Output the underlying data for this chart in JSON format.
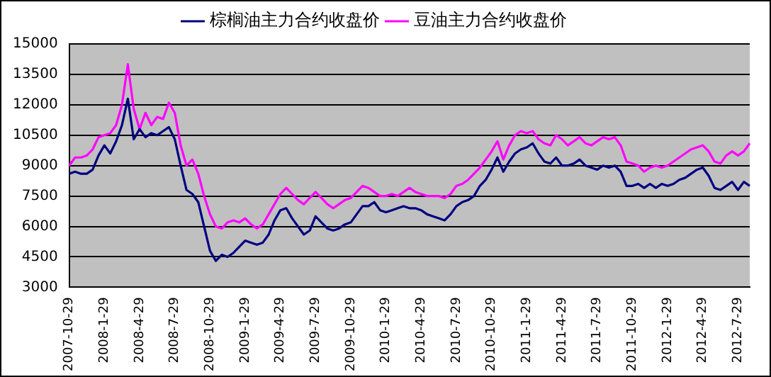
{
  "chart_data": {
    "type": "line",
    "categories": [
      "2007-10-29",
      null,
      null,
      null,
      null,
      null,
      "2008-1-29",
      null,
      null,
      null,
      null,
      null,
      "2008-4-29",
      null,
      null,
      null,
      null,
      null,
      "2008-7-29",
      null,
      null,
      null,
      null,
      null,
      "2008-10-29",
      null,
      null,
      null,
      null,
      null,
      "2009-1-29",
      null,
      null,
      null,
      null,
      null,
      "2009-4-29",
      null,
      null,
      null,
      null,
      null,
      "2009-7-29",
      null,
      null,
      null,
      null,
      null,
      "2009-10-29",
      null,
      null,
      null,
      null,
      null,
      "2010-1-29",
      null,
      null,
      null,
      null,
      null,
      "2010-4-29",
      null,
      null,
      null,
      null,
      null,
      "2010-7-29",
      null,
      null,
      null,
      null,
      null,
      "2010-10-29",
      null,
      null,
      null,
      null,
      null,
      "2011-1-29",
      null,
      null,
      null,
      null,
      null,
      "2011-4-29",
      null,
      null,
      null,
      null,
      null,
      "2011-7-29",
      null,
      null,
      null,
      null,
      null,
      "2011-10-29",
      null,
      null,
      null,
      null,
      null,
      "2012-1-29",
      null,
      null,
      null,
      null,
      null,
      "2012-4-29",
      null,
      null,
      null,
      null,
      null,
      "2012-7-29",
      null,
      null
    ],
    "series": [
      {
        "name": "棕榈油主力合约收盘价",
        "color": "#000080",
        "values": [
          8600,
          8700,
          8600,
          8600,
          8800,
          9500,
          10000,
          9600,
          10200,
          11000,
          12300,
          10300,
          10800,
          10400,
          10600,
          10500,
          10700,
          10900,
          10300,
          9000,
          7800,
          7600,
          7200,
          6000,
          4800,
          4300,
          4600,
          4500,
          4700,
          5000,
          5300,
          5200,
          5100,
          5200,
          5600,
          6300,
          6800,
          6900,
          6400,
          6000,
          5600,
          5800,
          6500,
          6200,
          5900,
          5800,
          5900,
          6100,
          6200,
          6600,
          7000,
          7000,
          7200,
          6800,
          6700,
          6800,
          6900,
          7000,
          6900,
          6900,
          6800,
          6600,
          6500,
          6400,
          6300,
          6600,
          7000,
          7200,
          7300,
          7500,
          8000,
          8300,
          8800,
          9400,
          8700,
          9200,
          9600,
          9800,
          9900,
          10100,
          9600,
          9200,
          9100,
          9400,
          9000,
          9000,
          9100,
          9300,
          9000,
          8900,
          8800,
          9000,
          8900,
          9000,
          8700,
          8000,
          8000,
          8100,
          7900,
          8100,
          7900,
          8100,
          8000,
          8100,
          8300,
          8400,
          8600,
          8800,
          8900,
          8500,
          7900,
          7800,
          8000,
          8200,
          7800,
          8200,
          8000
        ]
      },
      {
        "name": "豆油主力合约收盘价",
        "color": "#ff00ff",
        "values": [
          9000,
          9400,
          9400,
          9500,
          9800,
          10400,
          10500,
          10600,
          11000,
          12000,
          14000,
          11800,
          10800,
          11600,
          11000,
          11400,
          11300,
          12100,
          11600,
          10000,
          9000,
          9300,
          8600,
          7500,
          6600,
          6000,
          5900,
          6200,
          6300,
          6200,
          6400,
          6100,
          5900,
          6100,
          6600,
          7100,
          7600,
          7900,
          7600,
          7300,
          7100,
          7400,
          7700,
          7400,
          7100,
          6900,
          7100,
          7300,
          7400,
          7700,
          8000,
          7900,
          7700,
          7500,
          7500,
          7600,
          7500,
          7700,
          7900,
          7700,
          7600,
          7500,
          7500,
          7500,
          7400,
          7600,
          8000,
          8100,
          8300,
          8600,
          8900,
          9300,
          9700,
          10200,
          9300,
          10000,
          10500,
          10700,
          10600,
          10700,
          10300,
          10100,
          10000,
          10500,
          10300,
          10000,
          10200,
          10400,
          10100,
          10000,
          10200,
          10400,
          10300,
          10400,
          10000,
          9200,
          9100,
          9000,
          8700,
          8900,
          9000,
          8900,
          9000,
          9200,
          9400,
          9600,
          9800,
          9900,
          10000,
          9700,
          9200,
          9100,
          9500,
          9700,
          9500,
          9700,
          10100
        ]
      }
    ],
    "ylim": [
      3000,
      15000
    ],
    "yticks": [
      3000,
      4500,
      6000,
      7500,
      9000,
      10500,
      12000,
      13500,
      15000
    ],
    "grid": "y",
    "legend": "top",
    "marker": "none",
    "line_style": "solid"
  }
}
